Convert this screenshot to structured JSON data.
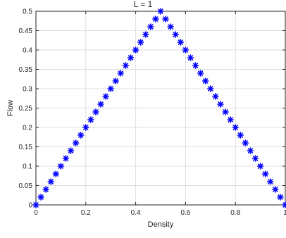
{
  "chart_data": {
    "type": "scatter",
    "title": "L = 1",
    "xlabel": "Density",
    "ylabel": "Flow",
    "xlim": [
      0,
      1
    ],
    "ylim": [
      0,
      0.5
    ],
    "xticks": [
      "0",
      "0.2",
      "0.4",
      "0.6",
      "0.8",
      "1"
    ],
    "yticks": [
      "0",
      "0.05",
      "0.1",
      "0.15",
      "0.2",
      "0.25",
      "0.3",
      "0.35",
      "0.4",
      "0.45",
      "0.5"
    ],
    "grid": true,
    "marker": "*",
    "marker_color": "#0000ff",
    "series": [
      {
        "x": [
          0,
          0.02,
          0.04,
          0.06,
          0.08,
          0.1,
          0.12,
          0.14,
          0.16,
          0.18,
          0.2,
          0.22,
          0.24,
          0.26,
          0.28,
          0.3,
          0.32,
          0.34,
          0.36,
          0.38,
          0.4,
          0.42,
          0.44,
          0.46,
          0.48,
          0.5,
          0.52,
          0.54,
          0.56,
          0.58,
          0.6,
          0.62,
          0.64,
          0.66,
          0.68,
          0.7,
          0.72,
          0.74,
          0.76,
          0.78,
          0.8,
          0.82,
          0.84,
          0.86,
          0.88,
          0.9,
          0.92,
          0.94,
          0.96,
          0.98,
          1.0
        ],
        "y": [
          0,
          0.02,
          0.04,
          0.06,
          0.08,
          0.1,
          0.12,
          0.14,
          0.16,
          0.18,
          0.2,
          0.22,
          0.24,
          0.26,
          0.28,
          0.3,
          0.32,
          0.34,
          0.36,
          0.38,
          0.4,
          0.42,
          0.44,
          0.46,
          0.48,
          0.5,
          0.48,
          0.46,
          0.44,
          0.42,
          0.4,
          0.38,
          0.36,
          0.34,
          0.32,
          0.3,
          0.28,
          0.26,
          0.24,
          0.22,
          0.2,
          0.18,
          0.16,
          0.14,
          0.12,
          0.1,
          0.08,
          0.06,
          0.04,
          0.02,
          0
        ]
      }
    ]
  }
}
